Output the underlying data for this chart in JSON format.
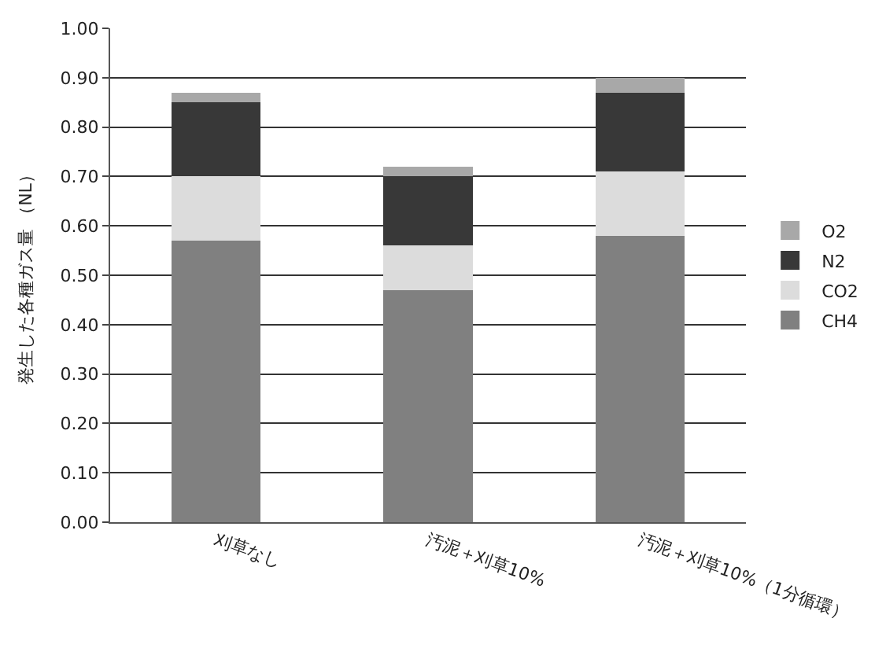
{
  "chart_data": {
    "type": "bar",
    "stacked": true,
    "ylabel": "発生した各種ガス量 （NL）",
    "categories": [
      "刈草なし",
      "汚泥＋刈草10%",
      "汚泥＋刈草10%（1分循環）"
    ],
    "series": [
      {
        "name": "CH4",
        "color": "#808080",
        "values": [
          0.57,
          0.47,
          0.58
        ]
      },
      {
        "name": "CO2",
        "color": "#dcdcdc",
        "values": [
          0.13,
          0.09,
          0.13
        ]
      },
      {
        "name": "N2",
        "color": "#383838",
        "values": [
          0.15,
          0.14,
          0.16
        ]
      },
      {
        "name": "O2",
        "color": "#a8a8a8",
        "values": [
          0.02,
          0.02,
          0.03
        ]
      }
    ],
    "ylim": [
      0,
      1
    ],
    "yticks": [
      {
        "value": 0,
        "label": "0.00"
      },
      {
        "value": 0.1,
        "label": "0.10"
      },
      {
        "value": 0.2,
        "label": "0.20"
      },
      {
        "value": 0.3,
        "label": "0.30"
      },
      {
        "value": 0.4,
        "label": "0.40"
      },
      {
        "value": 0.5,
        "label": "0.50"
      },
      {
        "value": 0.6,
        "label": "0.60"
      },
      {
        "value": 0.7,
        "label": "0.70"
      },
      {
        "value": 0.8,
        "label": "0.80"
      },
      {
        "value": 0.9,
        "label": "0.90"
      },
      {
        "value": 1,
        "label": "1.00"
      }
    ],
    "grid": "y",
    "legend": "right"
  }
}
